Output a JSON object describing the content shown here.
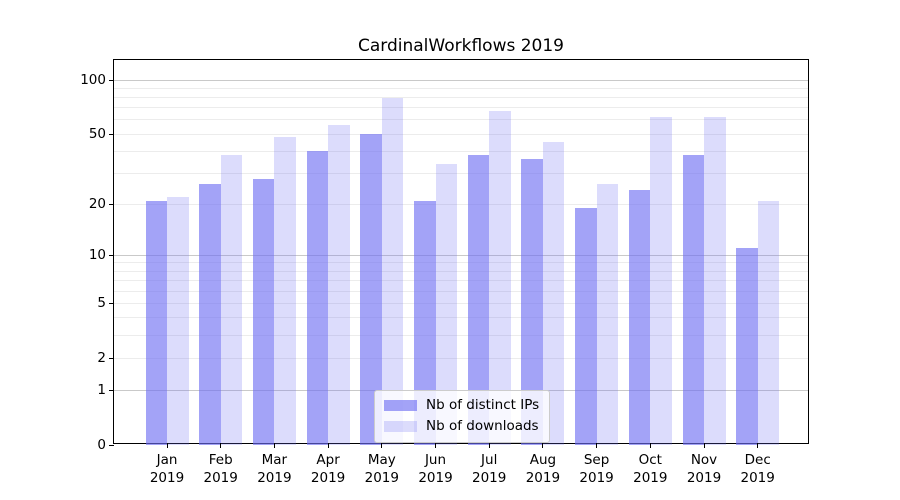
{
  "chart_data": {
    "type": "bar",
    "title": "CardinalWorkflows 2019",
    "categories": [
      "Jan",
      "Feb",
      "Mar",
      "Apr",
      "May",
      "Jun",
      "Jul",
      "Aug",
      "Sep",
      "Oct",
      "Nov",
      "Dec"
    ],
    "x_tick_second_line": "2019",
    "series": [
      {
        "name": "Nb of distinct IPs",
        "color": "rgba(110,110,242,0.63)",
        "values": [
          21,
          26,
          28,
          40,
          50,
          21,
          38,
          36,
          19,
          24,
          38,
          11
        ]
      },
      {
        "name": "Nb of downloads",
        "color": "rgba(110,110,242,0.24)",
        "values": [
          22,
          38,
          48,
          56,
          79,
          34,
          67,
          45,
          26,
          62,
          62,
          21
        ]
      }
    ],
    "y_scale": "log1p",
    "ylim": [
      0,
      130
    ],
    "y_ticks": [
      100,
      50,
      20,
      10,
      5,
      2,
      1,
      0
    ],
    "y_major_gridlines": [
      1,
      10,
      100
    ],
    "y_minor_gridlines": [
      2,
      3,
      4,
      5,
      6,
      7,
      8,
      9,
      20,
      30,
      40,
      50,
      60,
      70,
      80,
      90
    ],
    "grid": true,
    "legend_position": "lower center"
  },
  "colors": {
    "major_grid": "#c9c9c9",
    "minor_grid": "#ececec",
    "axis": "#000000",
    "text": "#000000",
    "legend_border": "#cccccc",
    "legend_bg": "rgba(255,255,255,0.8)"
  }
}
